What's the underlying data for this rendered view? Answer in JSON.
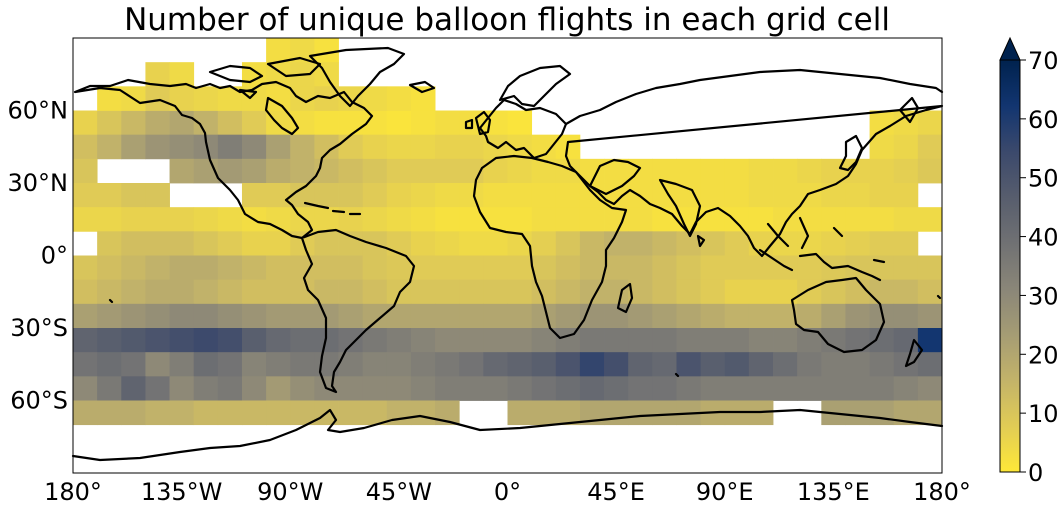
{
  "chart_data": {
    "type": "heatmap",
    "title": "Number of unique balloon flights in each grid cell",
    "projection": "plate-carree",
    "x_ticks": [
      "180°",
      "135°W",
      "90°W",
      "45°W",
      "0°",
      "45°E",
      "90°E",
      "135°E",
      "180°"
    ],
    "y_ticks": [
      "60°N",
      "30°N",
      "0°",
      "30°S",
      "60°S"
    ],
    "xlim": [
      -180,
      180
    ],
    "ylim": [
      -90,
      90
    ],
    "cell_size_deg": 10,
    "colorbar": {
      "colormap": "cividis_r",
      "vmin": 0,
      "vmax": 70,
      "extend": "max",
      "ticks": [
        "0",
        "10",
        "20",
        "30",
        "40",
        "50",
        "60",
        "70"
      ],
      "colors": [
        "#fee838",
        "#e1cc55",
        "#c3b369",
        "#a59c74",
        "#8a8678",
        "#707173",
        "#575d6d",
        "#3b496c",
        "#123570",
        "#00224e"
      ]
    },
    "grid_spec": {
      "band_lats": [
        50,
        40,
        30,
        20,
        10,
        0,
        -10,
        -20,
        -30,
        -40,
        -50,
        -60,
        -70
      ],
      "lon_band_values": [
        [
          6,
          10,
          14,
          18,
          20,
          16,
          12,
          8,
          4,
          3,
          2,
          2,
          2,
          1,
          2,
          3,
          3,
          2,
          1,
          0,
          0,
          0,
          0,
          0,
          0,
          0,
          0,
          0,
          0,
          0,
          0,
          0,
          0,
          3,
          4,
          5
        ],
        [
          12,
          16,
          22,
          26,
          28,
          30,
          34,
          30,
          22,
          16,
          12,
          8,
          6,
          5,
          5,
          6,
          6,
          5,
          4,
          3,
          2,
          0,
          0,
          0,
          0,
          0,
          0,
          0,
          0,
          0,
          0,
          0,
          0,
          4,
          5,
          8
        ],
        [
          10,
          12,
          16,
          18,
          20,
          22,
          24,
          22,
          18,
          16,
          14,
          12,
          10,
          8,
          8,
          8,
          8,
          6,
          5,
          4,
          4,
          3,
          3,
          3,
          3,
          3,
          3,
          3,
          4,
          4,
          5,
          6,
          6,
          6,
          7,
          9
        ],
        [
          8,
          8,
          10,
          10,
          12,
          12,
          10,
          8,
          8,
          10,
          10,
          10,
          8,
          6,
          5,
          4,
          4,
          3,
          3,
          3,
          3,
          3,
          3,
          3,
          3,
          3,
          3,
          3,
          4,
          4,
          4,
          5,
          5,
          6,
          6,
          7
        ],
        [
          5,
          5,
          6,
          6,
          6,
          5,
          4,
          3,
          4,
          5,
          5,
          6,
          5,
          4,
          3,
          2,
          2,
          2,
          2,
          3,
          3,
          3,
          3,
          3,
          2,
          2,
          2,
          2,
          2,
          3,
          3,
          3,
          3,
          3,
          4,
          4
        ],
        [
          8,
          10,
          12,
          12,
          12,
          10,
          8,
          6,
          6,
          8,
          10,
          10,
          10,
          8,
          6,
          5,
          4,
          4,
          5,
          7,
          10,
          14,
          16,
          16,
          14,
          12,
          10,
          8,
          6,
          5,
          5,
          6,
          7,
          8,
          8,
          8
        ],
        [
          10,
          12,
          14,
          16,
          18,
          18,
          16,
          14,
          12,
          12,
          12,
          12,
          10,
          9,
          8,
          8,
          8,
          8,
          8,
          10,
          12,
          14,
          14,
          14,
          12,
          10,
          8,
          8,
          8,
          8,
          8,
          9,
          10,
          10,
          10,
          10
        ],
        [
          12,
          14,
          16,
          18,
          18,
          16,
          14,
          12,
          12,
          12,
          14,
          14,
          12,
          10,
          10,
          10,
          10,
          10,
          10,
          12,
          14,
          16,
          16,
          14,
          12,
          10,
          8,
          6,
          6,
          6,
          8,
          10,
          12,
          14,
          14,
          12
        ],
        [
          22,
          24,
          26,
          28,
          30,
          30,
          28,
          26,
          24,
          24,
          24,
          22,
          20,
          20,
          20,
          20,
          20,
          20,
          20,
          22,
          24,
          26,
          26,
          24,
          22,
          20,
          18,
          16,
          16,
          16,
          18,
          22,
          26,
          28,
          28,
          26
        ],
        [
          44,
          46,
          48,
          50,
          52,
          54,
          52,
          46,
          42,
          40,
          40,
          38,
          36,
          34,
          32,
          30,
          30,
          30,
          30,
          32,
          34,
          36,
          36,
          36,
          36,
          34,
          34,
          34,
          32,
          32,
          34,
          36,
          38,
          40,
          42,
          62
        ],
        [
          38,
          40,
          38,
          30,
          34,
          40,
          38,
          32,
          34,
          36,
          36,
          34,
          32,
          32,
          34,
          36,
          38,
          42,
          44,
          46,
          50,
          56,
          52,
          44,
          42,
          50,
          46,
          48,
          44,
          40,
          36,
          34,
          34,
          36,
          38,
          40
        ],
        [
          30,
          36,
          44,
          38,
          30,
          34,
          36,
          30,
          24,
          28,
          30,
          30,
          30,
          30,
          32,
          34,
          34,
          34,
          36,
          38,
          40,
          42,
          40,
          38,
          38,
          36,
          34,
          34,
          34,
          34,
          34,
          34,
          34,
          34,
          32,
          30
        ],
        [
          18,
          18,
          18,
          16,
          16,
          14,
          14,
          14,
          14,
          14,
          14,
          14,
          14,
          16,
          16,
          18,
          18,
          18,
          18,
          18,
          18,
          20,
          20,
          20,
          20,
          20,
          18,
          18,
          18,
          18,
          20,
          22,
          22,
          22,
          20,
          20
        ]
      ],
      "extra_cells": [
        {
          "lat": 80,
          "lon": -100,
          "value": 3
        },
        {
          "lat": 80,
          "lon": -90,
          "value": 4
        },
        {
          "lat": 80,
          "lon": -80,
          "value": 2
        },
        {
          "lat": 70,
          "lon": -150,
          "value": 6
        },
        {
          "lat": 70,
          "lon": -140,
          "value": 4
        },
        {
          "lat": 70,
          "lon": -110,
          "value": 3
        },
        {
          "lat": 70,
          "lon": -100,
          "value": 4
        },
        {
          "lat": 70,
          "lon": -90,
          "value": 5
        },
        {
          "lat": 70,
          "lon": -80,
          "value": 4
        },
        {
          "lat": 60,
          "lon": -170,
          "value": 3
        },
        {
          "lat": 60,
          "lon": -160,
          "value": 4
        },
        {
          "lat": 60,
          "lon": -150,
          "value": 8
        },
        {
          "lat": 60,
          "lon": -140,
          "value": 6
        },
        {
          "lat": 60,
          "lon": -130,
          "value": 5
        },
        {
          "lat": 60,
          "lon": -120,
          "value": 4
        },
        {
          "lat": 60,
          "lon": -110,
          "value": 4
        },
        {
          "lat": 60,
          "lon": -100,
          "value": 3
        },
        {
          "lat": 60,
          "lon": -90,
          "value": 5
        },
        {
          "lat": 60,
          "lon": -80,
          "value": 6
        },
        {
          "lat": 60,
          "lon": -70,
          "value": 5
        },
        {
          "lat": 60,
          "lon": -60,
          "value": 4
        },
        {
          "lat": 60,
          "lon": -50,
          "value": 3
        },
        {
          "lat": 60,
          "lon": -40,
          "value": 2
        }
      ],
      "empty_cells": [
        {
          "lat": 30,
          "lon": -170
        },
        {
          "lat": 30,
          "lon": -160
        },
        {
          "lat": 30,
          "lon": -150
        },
        {
          "lat": 20,
          "lon": -140
        },
        {
          "lat": 20,
          "lon": -130
        },
        {
          "lat": 20,
          "lon": -120
        },
        {
          "lat": 0,
          "lon": -180
        },
        {
          "lat": 0,
          "lon": 170
        },
        {
          "lat": 20,
          "lon": 170
        },
        {
          "lat": -80,
          "lon": -60
        },
        {
          "lat": -80,
          "lon": 50
        },
        {
          "lat": -70,
          "lon": -20
        },
        {
          "lat": -70,
          "lon": -10
        },
        {
          "lat": -70,
          "lon": 110
        },
        {
          "lat": -70,
          "lon": 120
        }
      ]
    }
  }
}
